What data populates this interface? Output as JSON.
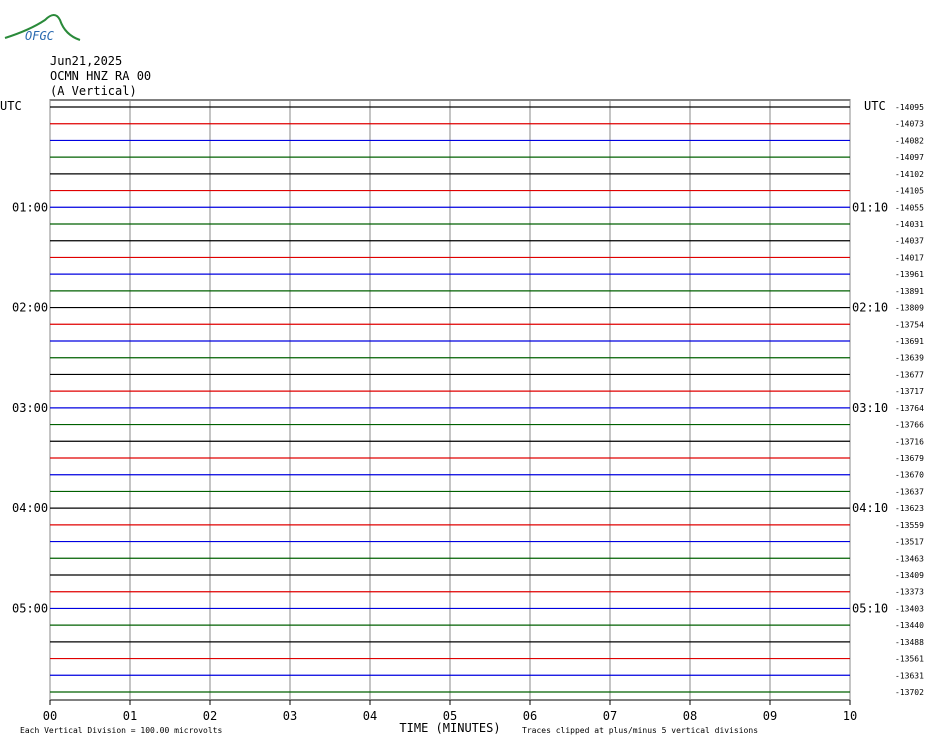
{
  "chart_data": {
    "type": "helicorder",
    "logo": "OFGC",
    "date": "Jun21,2025",
    "station": "OCMN HNZ RA 00",
    "component": "(A Vertical)",
    "left_corner": "UTC",
    "right_corner": "UTC",
    "left_labels": [
      "01:00",
      "02:00",
      "03:00",
      "04:00",
      "05:00"
    ],
    "right_labels": [
      "01:10",
      "02:10",
      "03:10",
      "04:10",
      "05:10"
    ],
    "xlabel": "TIME (MINUTES)",
    "scale_note": "Each Vertical Division =  100.00 microvolts",
    "clip_note": "Traces clipped at plus/minus 5 vertical divisions",
    "xlim": [
      0,
      10
    ],
    "xticks": [
      {
        "value": 0,
        "label": "00"
      },
      {
        "value": 1,
        "label": "01"
      },
      {
        "value": 2,
        "label": "02"
      },
      {
        "value": 3,
        "label": "03"
      },
      {
        "value": 4,
        "label": "04"
      },
      {
        "value": 5,
        "label": "05"
      },
      {
        "value": 6,
        "label": "06"
      },
      {
        "value": 7,
        "label": "07"
      },
      {
        "value": 8,
        "label": "08"
      },
      {
        "value": 9,
        "label": "09"
      },
      {
        "value": 10,
        "label": "10"
      }
    ],
    "grid": true,
    "colors": [
      "#000000",
      "#e00000",
      "#0000e0",
      "#006000"
    ],
    "offsets": [
      -14095,
      -14073,
      -14082,
      -14097,
      -14102,
      -14105,
      -14055,
      -14031,
      -14037,
      -14017,
      -13961,
      -13891,
      -13809,
      -13754,
      -13691,
      -13639,
      -13677,
      -13717,
      -13764,
      -13766,
      -13716,
      -13679,
      -13670,
      -13637,
      -13623,
      -13559,
      -13517,
      -13463,
      -13409,
      -13373,
      -13403,
      -13440,
      -13488,
      -13561,
      -13631,
      -13702
    ]
  }
}
